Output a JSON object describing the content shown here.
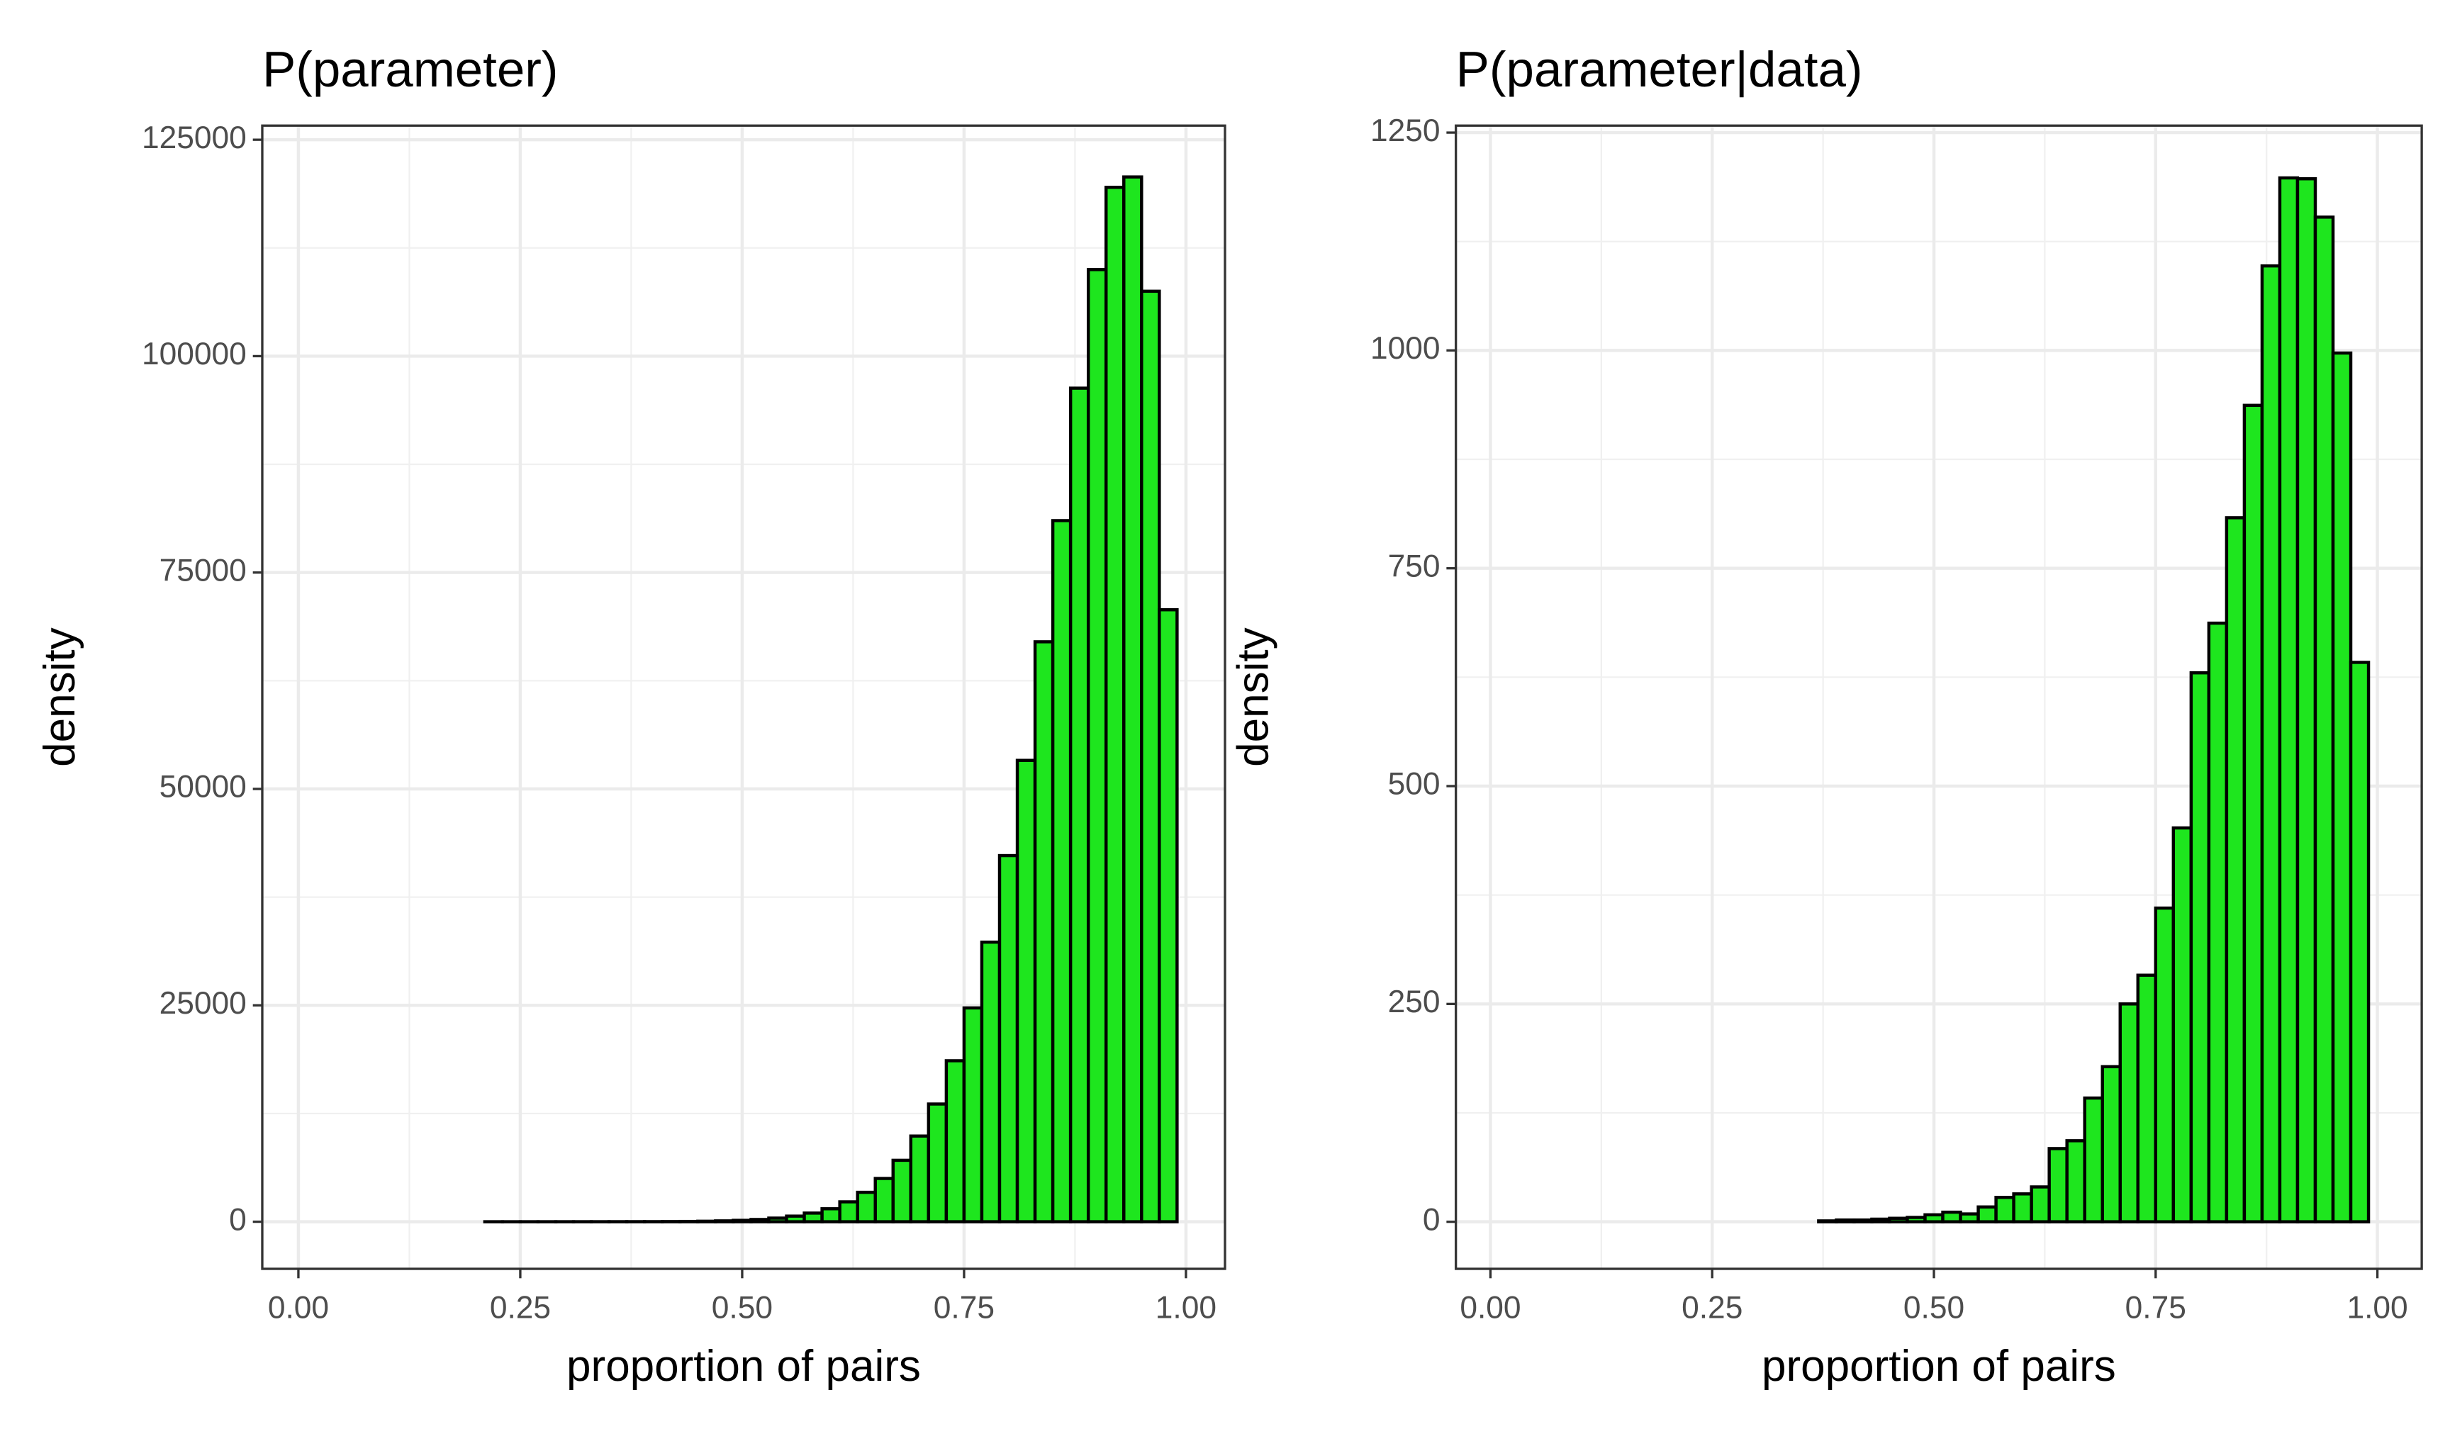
{
  "chart_data": [
    {
      "type": "histogram",
      "title": "P(parameter)",
      "xlabel": "proportion of pairs",
      "ylabel": "density",
      "color": "#1ee61e",
      "grid": true,
      "bins": [
        0.01,
        0.03,
        0.05,
        0.07,
        0.09,
        0.11,
        0.13,
        0.15,
        0.17,
        0.19,
        0.21,
        0.23,
        0.25,
        0.27,
        0.29,
        0.31,
        0.33,
        0.35,
        0.37,
        0.39,
        0.41,
        0.43,
        0.45,
        0.47,
        0.49,
        0.51,
        0.53,
        0.55,
        0.57,
        0.59,
        0.61,
        0.63,
        0.65,
        0.67,
        0.69,
        0.71,
        0.73,
        0.75,
        0.77,
        0.79,
        0.81,
        0.83,
        0.85,
        0.87,
        0.89,
        0.91,
        0.93,
        0.95,
        0.97,
        0.99
      ],
      "values": [
        0,
        0,
        0,
        0,
        0,
        0,
        0,
        0,
        0,
        0,
        1,
        1,
        2,
        2,
        3,
        4,
        5,
        7,
        9,
        12,
        20,
        35,
        60,
        100,
        160,
        260,
        420,
        650,
        1000,
        1500,
        2300,
        3400,
        5000,
        7100,
        9900,
        13600,
        18600,
        24700,
        32300,
        42300,
        53300,
        67000,
        81000,
        96300,
        110000,
        119500,
        120700,
        107500,
        70700
      ],
      "xlim": [
        -0.0407,
        1.044
      ],
      "xticks": [
        {
          "value": 0,
          "label": "0.00"
        },
        0.25,
        {
          "value": 0.5,
          "label": "0.50"
        },
        0.75,
        {
          "value": 1,
          "label": "1.00"
        }
      ],
      "ylim": [
        -5440,
        126630
      ],
      "yticks": [
        0,
        25000,
        50000,
        75000,
        100000,
        125000
      ]
    },
    {
      "type": "histogram",
      "title": "P(parameter|data)",
      "xlabel": "proportion of pairs",
      "ylabel": "density",
      "color": "#1ee61e",
      "grid": true,
      "bins": [
        0.01,
        0.03,
        0.05,
        0.07,
        0.09,
        0.11,
        0.13,
        0.15,
        0.17,
        0.19,
        0.21,
        0.23,
        0.25,
        0.27,
        0.29,
        0.31,
        0.33,
        0.35,
        0.37,
        0.39,
        0.41,
        0.43,
        0.45,
        0.47,
        0.49,
        0.51,
        0.53,
        0.55,
        0.57,
        0.59,
        0.61,
        0.63,
        0.65,
        0.67,
        0.69,
        0.71,
        0.73,
        0.75,
        0.77,
        0.79,
        0.81,
        0.83,
        0.85,
        0.87,
        0.89,
        0.91,
        0.93,
        0.95,
        0.97,
        0.99
      ],
      "values": [
        0,
        0,
        0,
        0,
        0,
        0,
        0,
        0,
        0,
        0,
        0,
        0,
        0,
        0,
        0,
        0,
        0,
        0,
        1,
        2,
        2,
        3,
        4,
        5,
        8,
        11,
        9,
        17,
        28,
        32,
        40,
        84,
        93,
        142,
        178,
        250,
        283,
        360,
        452,
        630,
        687,
        808,
        937,
        1097,
        1198,
        1197,
        1153,
        997,
        642
      ],
      "xlim": [
        -0.039,
        1.05
      ],
      "xticks": [
        {
          "value": 0,
          "label": "0.00"
        },
        0.25,
        {
          "value": 0.5,
          "label": "0.50"
        },
        0.75,
        {
          "value": 1,
          "label": "1.00"
        }
      ],
      "ylim": [
        -54,
        1258
      ],
      "yticks": [
        0,
        250,
        500,
        750,
        1000,
        1250
      ]
    }
  ]
}
